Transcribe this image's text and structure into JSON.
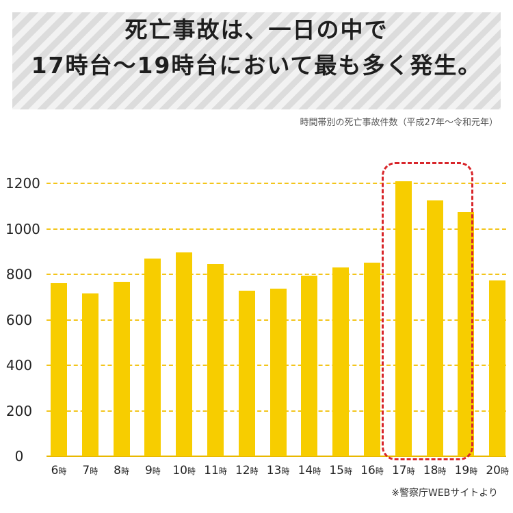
{
  "header": {
    "title_line1": "死亡事故は、一日の中で",
    "title_line2": "17時台～19時台において最も多く発生。",
    "subtitle": "時間帯別の死亡事故件数（平成27年～令和元年）"
  },
  "footer": {
    "source": "※警察庁WEBサイトより"
  },
  "colors": {
    "bar": "#f7cd00",
    "gridline": "#f3c51b",
    "highlight_border": "#d8262b",
    "header_stripes": [
      "#dcdcdc",
      "#f2f2f2"
    ]
  },
  "chart_data": {
    "type": "bar",
    "title": "死亡事故は、一日の中で17時台～19時台において最も多く発生。",
    "subtitle": "時間帯別の死亡事故件数（平成27年～令和元年）",
    "categories": [
      "6時",
      "7時",
      "8時",
      "9時",
      "10時",
      "11時",
      "12時",
      "13時",
      "14時",
      "15時",
      "16時",
      "17時",
      "18時",
      "19時",
      "20時"
    ],
    "values": [
      760,
      716,
      768,
      869,
      895,
      846,
      728,
      737,
      794,
      830,
      851,
      1210,
      1124,
      1074,
      773
    ],
    "xlabel": "",
    "ylabel": "",
    "ylim": [
      0,
      1200
    ],
    "yticks": [
      0,
      200,
      400,
      600,
      800,
      1000,
      1200
    ],
    "grid": true,
    "grid_style": "dashed horizontal",
    "legend": null,
    "annotations": [
      {
        "type": "dashed-rounded-box",
        "covers": [
          "17時",
          "18時",
          "19時"
        ],
        "color": "#d8262b"
      }
    ],
    "source": "※警察庁WEBサイトより"
  }
}
